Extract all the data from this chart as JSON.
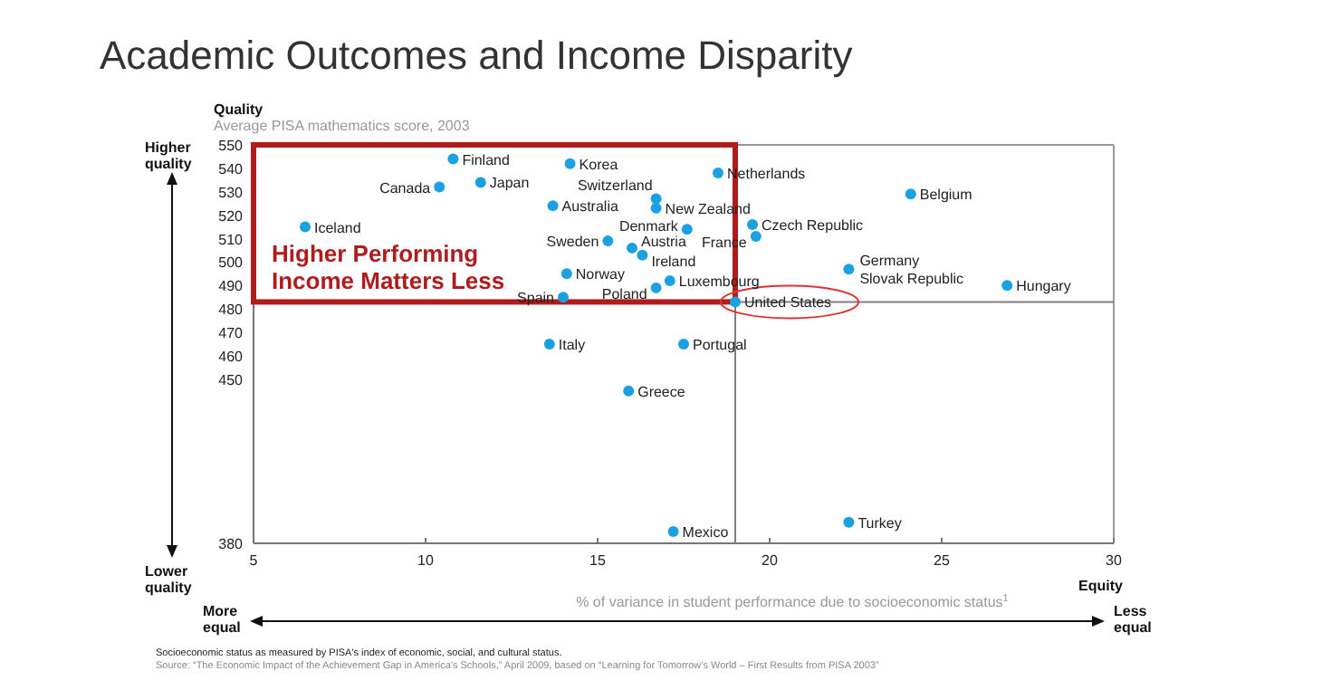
{
  "chart_data": {
    "type": "scatter",
    "title": "Academic Outcomes and Income Disparity",
    "xlabel": "% of variance in student performance due to socioeconomic status$^{1}$",
    "ylabel": "Average PISA mathematics score, 2003",
    "color": "#1ba1e2",
    "marker": "circle",
    "grid": false,
    "legend": false,
    "xlim": [
      5,
      30
    ],
    "xticks": [
      5,
      10,
      15,
      20,
      25,
      30
    ],
    "ylim": [
      380,
      550
    ],
    "yticks": [
      380,
      450,
      460,
      470,
      480,
      490,
      500,
      510,
      520,
      530,
      540,
      550
    ],
    "x": [
      10.8,
      14.2,
      10.4,
      11.6,
      13.7,
      6.5,
      16.7,
      16.7,
      17.6,
      15.3,
      16.0,
      16.3,
      19.6,
      19.5,
      18.5,
      24.1,
      22.3,
      26.9,
      14.1,
      17.1,
      14.0,
      16.7,
      19.0,
      13.6,
      17.5,
      15.9,
      17.2,
      22.3
    ],
    "values": [
      544,
      542,
      532,
      534,
      524,
      515,
      527,
      523,
      514,
      509,
      506,
      503,
      511,
      516,
      538,
      529,
      497,
      490,
      495,
      492,
      485,
      489,
      483,
      465,
      465,
      445,
      385,
      389
    ],
    "ref_lines": [
      {
        "axis": "x",
        "value": 19,
        "color": "#808080"
      },
      {
        "axis": "y",
        "value": 483,
        "color": "#808080"
      }
    ],
    "annotations": [
      {
        "text": "Finland",
        "x": 10.8,
        "y": 544
      },
      {
        "text": "Korea",
        "x": 14.2,
        "y": 542
      },
      {
        "text": "Canada",
        "x": 10.4,
        "y": 532
      },
      {
        "text": "Japan",
        "x": 11.6,
        "y": 534
      },
      {
        "text": "Australia",
        "x": 13.7,
        "y": 524
      },
      {
        "text": "Iceland",
        "x": 6.5,
        "y": 515
      },
      {
        "text": "Switzerland",
        "x": 16.7,
        "y": 527
      },
      {
        "text": "New Zealand",
        "x": 16.7,
        "y": 523
      },
      {
        "text": "Denmark",
        "x": 17.6,
        "y": 514
      },
      {
        "text": "Sweden",
        "x": 15.3,
        "y": 509
      },
      {
        "text": "Austria",
        "x": 16.0,
        "y": 506
      },
      {
        "text": "Ireland",
        "x": 16.3,
        "y": 503
      },
      {
        "text": "France",
        "x": 19.6,
        "y": 511
      },
      {
        "text": "Czech Republic",
        "x": 19.5,
        "y": 516
      },
      {
        "text": "Netherlands",
        "x": 18.5,
        "y": 538
      },
      {
        "text": "Belgium",
        "x": 24.1,
        "y": 529
      },
      {
        "text": "Germany",
        "x": 22.3,
        "y": 498
      },
      {
        "text": "Slovak Republic",
        "x": 22.3,
        "y": 497
      },
      {
        "text": "Hungary",
        "x": 26.9,
        "y": 490
      },
      {
        "text": "Norway",
        "x": 14.1,
        "y": 495
      },
      {
        "text": "Luxembourg",
        "x": 17.1,
        "y": 492
      },
      {
        "text": "Spain",
        "x": 14.0,
        "y": 485
      },
      {
        "text": "Poland",
        "x": 16.7,
        "y": 489
      },
      {
        "text": "United States",
        "x": 19.0,
        "y": 483
      },
      {
        "text": "Italy",
        "x": 13.6,
        "y": 465
      },
      {
        "text": "Portugal",
        "x": 17.5,
        "y": 465
      },
      {
        "text": "Greece",
        "x": 15.9,
        "y": 445
      },
      {
        "text": "Mexico",
        "x": 17.2,
        "y": 385
      },
      {
        "text": "Turkey",
        "x": 22.3,
        "y": 389
      },
      "Quality",
      "Higher quality",
      "Lower quality",
      "Equity",
      "More equal",
      "Less equal",
      "Higher Performing\nIncome Matters Less",
      "Socioeconomic status as measured by PISA's index of economic, social, and cultural status.",
      "Source: “The Economic Impact of the Achievement Gap in America's Schools,” April 2009, based on “Learning for Tomorrow's World – First Results from PISA 2003”"
    ]
  }
}
